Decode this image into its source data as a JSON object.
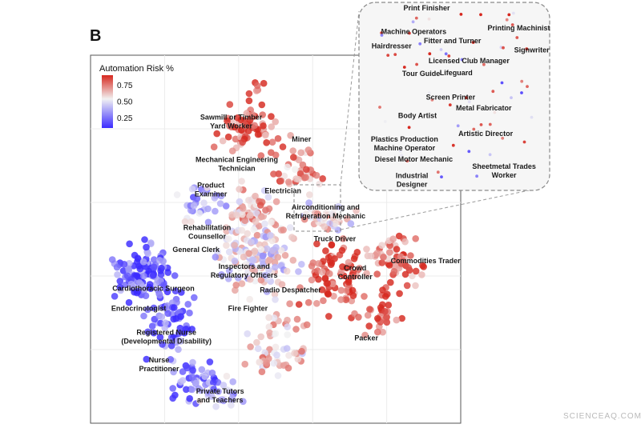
{
  "panel_letter": "B",
  "watermark": "SCIENCEAQ.COM",
  "colors": {
    "low": "#3b2bff",
    "mid": "#f2f2f2",
    "high": "#d6281f"
  },
  "chart_data": {
    "type": "scatter",
    "title": "",
    "xlabel": "",
    "ylabel": "",
    "grid": true,
    "legend": {
      "placement": "top-left",
      "title": "Automation Risk %",
      "ticks": [
        "0.75",
        "0.50",
        "0.25"
      ],
      "tick_values": [
        0.75,
        0.5,
        0.25
      ],
      "range": [
        0.1,
        0.9
      ]
    },
    "xlim": [
      0,
      100
    ],
    "ylim": [
      0,
      100
    ],
    "labels": [
      {
        "text": [
          "Sawmill or Timber",
          "Yard Worker"
        ],
        "x": 38,
        "y": 82.5
      },
      {
        "text": [
          "Miner"
        ],
        "x": 57,
        "y": 76.5
      },
      {
        "text": [
          "Mechanical Engineering",
          "Technician"
        ],
        "x": 39.5,
        "y": 71
      },
      {
        "text": [
          "Product",
          "Examiner"
        ],
        "x": 32.5,
        "y": 64
      },
      {
        "text": [
          "Electrician"
        ],
        "x": 52,
        "y": 62.5
      },
      {
        "text": [
          "Airconditioning and",
          "Refrigeration Mechanic"
        ],
        "x": 63.5,
        "y": 58
      },
      {
        "text": [
          "Rehabilitation",
          "Counsellor"
        ],
        "x": 31.5,
        "y": 52.5
      },
      {
        "text": [
          "Truck Driver"
        ],
        "x": 66,
        "y": 49.5
      },
      {
        "text": [
          "General Clerk"
        ],
        "x": 28.5,
        "y": 46.5
      },
      {
        "text": [
          "Inspectors and",
          "Regulatory Officers"
        ],
        "x": 41.5,
        "y": 42
      },
      {
        "text": [
          "Crowd",
          "Controller"
        ],
        "x": 71.5,
        "y": 41.5
      },
      {
        "text": [
          "Commodities Trader"
        ],
        "x": 90.5,
        "y": 43.5
      },
      {
        "text": [
          "Cardiothoracic Surgeon"
        ],
        "x": 17,
        "y": 36
      },
      {
        "text": [
          "Radio Despatcher"
        ],
        "x": 54,
        "y": 35.5
      },
      {
        "text": [
          "Fire Fighter"
        ],
        "x": 42.5,
        "y": 30.5
      },
      {
        "text": [
          "Endocrinologist"
        ],
        "x": 13,
        "y": 30.5
      },
      {
        "text": [
          "Registered Nurse",
          "(Developmental Disability)"
        ],
        "x": 20.5,
        "y": 24
      },
      {
        "text": [
          "Packer"
        ],
        "x": 74.5,
        "y": 22.5
      },
      {
        "text": [
          "Nurse",
          "Practitioner"
        ],
        "x": 18.5,
        "y": 16.5
      },
      {
        "text": [
          "Private Tutors",
          "and Teachers"
        ],
        "x": 35,
        "y": 8
      }
    ],
    "inset": {
      "xlim": [
        0,
        100
      ],
      "ylim": [
        0,
        100
      ],
      "labels": [
        {
          "text": [
            "Print Finisher"
          ],
          "x": 35,
          "y": 97
        },
        {
          "text": [
            "Printing Machinist"
          ],
          "x": 85,
          "y": 86
        },
        {
          "text": [
            "Machine Operators"
          ],
          "x": 28,
          "y": 84
        },
        {
          "text": [
            "Fitter and Turner"
          ],
          "x": 49,
          "y": 79
        },
        {
          "text": [
            "Hairdresser"
          ],
          "x": 16,
          "y": 76
        },
        {
          "text": [
            "Signwriter"
          ],
          "x": 92,
          "y": 74
        },
        {
          "text": [
            "Licensed Club Manager"
          ],
          "x": 58,
          "y": 68
        },
        {
          "text": [
            "Tour Guide"
          ],
          "x": 32,
          "y": 61
        },
        {
          "text": [
            "Lifeguard"
          ],
          "x": 51,
          "y": 61.5
        },
        {
          "text": [
            "Screen Printer"
          ],
          "x": 48,
          "y": 48
        },
        {
          "text": [
            "Metal Fabricator"
          ],
          "x": 66,
          "y": 42
        },
        {
          "text": [
            "Body Artist"
          ],
          "x": 30,
          "y": 38
        },
        {
          "text": [
            "Artistic Director"
          ],
          "x": 67,
          "y": 28
        },
        {
          "text": [
            "Plastics Production",
            "Machine Operator"
          ],
          "x": 23,
          "y": 25
        },
        {
          "text": [
            "Diesel Motor Mechanic"
          ],
          "x": 28,
          "y": 14
        },
        {
          "text": [
            "Sheetmetal Trades",
            "Worker"
          ],
          "x": 77,
          "y": 10
        },
        {
          "text": [
            "Industrial",
            "Designer"
          ],
          "x": 27,
          "y": 5
        }
      ]
    }
  }
}
